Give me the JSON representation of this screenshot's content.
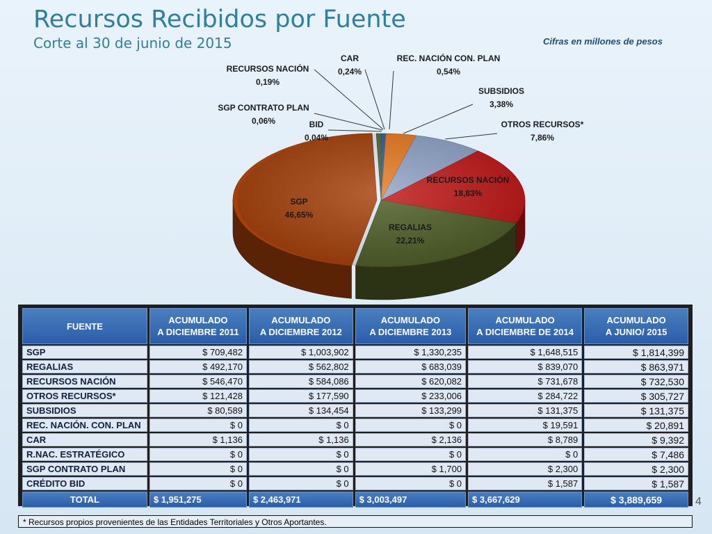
{
  "header": {
    "title": "Recursos Recibidos por Fuente",
    "subtitle": "Corte al 30 de junio de 2015",
    "units_note": "Cifras en millones de pesos"
  },
  "chart_data": {
    "type": "pie",
    "slices": [
      {
        "name": "REC. NACIÓN CON. PLAN",
        "pct_label": "0,54%",
        "value": 0.54,
        "color": "#2f5f9c"
      },
      {
        "name": "SUBSIDIOS",
        "pct_label": "3,38%",
        "value": 3.38,
        "color": "#ea7a1f"
      },
      {
        "name": "OTROS RECURSOS*",
        "pct_label": "7,86%",
        "value": 7.86,
        "color": "#8ea3c8"
      },
      {
        "name": "RECURSOS NACIÓN",
        "pct_label": "18,83%",
        "value": 18.83,
        "color": "#c01515"
      },
      {
        "name": "REGALIAS",
        "pct_label": "22,21%",
        "value": 22.21,
        "color": "#4e5d25"
      },
      {
        "name": "SGP",
        "pct_label": "46,65%",
        "value": 46.65,
        "color": "#a6400a"
      },
      {
        "name": "BID",
        "pct_label": "0,04%",
        "value": 0.04,
        "color": "#7a7a7a"
      },
      {
        "name": "SGP CONTRATO PLAN",
        "pct_label": "0,06%",
        "value": 0.06,
        "color": "#2c8a8a"
      },
      {
        "name": "RECURSOS NACIÓN",
        "pct_label": "0,19%",
        "value": 0.19,
        "color": "#7f6b2c"
      },
      {
        "name": "CAR",
        "pct_label": "0,24%",
        "value": 0.24,
        "color": "#3f7a3a"
      }
    ]
  },
  "table": {
    "headers": [
      "FUENTE",
      "ACUMULADO A DICIEMBRE 2011",
      "ACUMULADO A DICIEMBRE 2012",
      "ACUMULADO A DICIEMBRE 2013",
      "ACUMULADO A DICIEMBRE DE 2014",
      "ACUMULADO A JUNIO/ 2015"
    ],
    "header_lines": [
      [
        "FUENTE"
      ],
      [
        "ACUMULADO",
        "A DICIEMBRE 2011"
      ],
      [
        "ACUMULADO",
        "A DICIEMBRE 2012"
      ],
      [
        "ACUMULADO",
        "A DICIEMBRE 2013"
      ],
      [
        "ACUMULADO",
        "A DICIEMBRE DE 2014"
      ],
      [
        "ACUMULADO",
        "A  JUNIO/ 2015"
      ]
    ],
    "rows": [
      [
        "SGP",
        "$ 709,482",
        "$ 1,003,902",
        "$ 1,330,235",
        "$ 1,648,515",
        "$ 1,814,399"
      ],
      [
        "REGALIAS",
        "$ 492,170",
        "$ 562,802",
        "$ 683,039",
        "$ 839,070",
        "$ 863,971"
      ],
      [
        "RECURSOS NACIÓN",
        "$ 546,470",
        "$ 584,086",
        "$ 620,082",
        "$ 731,678",
        "$ 732,530"
      ],
      [
        "OTROS RECURSOS*",
        "$ 121,428",
        "$ 177,590",
        "$ 233,006",
        "$ 284,722",
        "$ 305,727"
      ],
      [
        "SUBSIDIOS",
        "$ 80,589",
        "$ 134,454",
        "$ 133,299",
        "$ 131,375",
        "$ 131,375"
      ],
      [
        "REC. NACIÓN. CON. PLAN",
        "$ 0",
        "$ 0",
        "$ 0",
        "$ 19,591",
        "$ 20,891"
      ],
      [
        "CAR",
        "$ 1,136",
        "$ 1,136",
        "$ 2,136",
        "$ 8,789",
        "$ 9,392"
      ],
      [
        "R.NAC. ESTRATÉGICO",
        "$ 0",
        "$ 0",
        "$ 0",
        "$ 0",
        "$ 7,486"
      ],
      [
        "SGP CONTRATO PLAN",
        "$ 0",
        "$ 0",
        "$ 1,700",
        "$ 2,300",
        "$ 2,300"
      ],
      [
        "CRÉDITO BID",
        "$ 0",
        "$ 0",
        "$ 0",
        "$ 1,587",
        "$ 1,587"
      ]
    ],
    "total": [
      "TOTAL",
      "$ 1,951,275",
      "$ 2,463,971",
      "$ 3,003,497",
      "$ 3,667,629",
      "$ 3,889,659"
    ]
  },
  "page_number": "4",
  "footnote": "* Recursos propios provenientes de  las Entidades Territoriales y Otros Aportantes."
}
